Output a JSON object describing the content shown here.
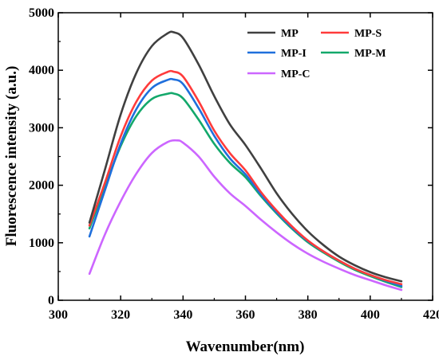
{
  "chart_data": {
    "type": "line",
    "xlabel": "Wavenumber(nm)",
    "ylabel": "Fluorescence intensity (a.u.)",
    "xlim": [
      300,
      420
    ],
    "ylim": [
      0,
      5000
    ],
    "x_ticks": [
      "300",
      "320",
      "340",
      "360",
      "380",
      "400",
      "420"
    ],
    "y_ticks": [
      "0",
      "1000",
      "2000",
      "3000",
      "4000",
      "5000"
    ],
    "grid": false,
    "legend_position": "top-right",
    "series": [
      {
        "name": "MP",
        "color": "#404040",
        "points": [
          [
            310,
            1350
          ],
          [
            315,
            2280
          ],
          [
            320,
            3230
          ],
          [
            325,
            3950
          ],
          [
            330,
            4420
          ],
          [
            335,
            4640
          ],
          [
            337,
            4660
          ],
          [
            340,
            4560
          ],
          [
            345,
            4100
          ],
          [
            350,
            3550
          ],
          [
            355,
            3060
          ],
          [
            360,
            2700
          ],
          [
            365,
            2290
          ],
          [
            370,
            1860
          ],
          [
            375,
            1500
          ],
          [
            380,
            1200
          ],
          [
            385,
            960
          ],
          [
            390,
            760
          ],
          [
            395,
            610
          ],
          [
            400,
            490
          ],
          [
            405,
            400
          ],
          [
            410,
            330
          ]
        ]
      },
      {
        "name": "MP-S",
        "color": "#ff3b3b",
        "points": [
          [
            310,
            1300
          ],
          [
            315,
            2050
          ],
          [
            320,
            2850
          ],
          [
            325,
            3450
          ],
          [
            330,
            3820
          ],
          [
            335,
            3970
          ],
          [
            337,
            3975
          ],
          [
            340,
            3890
          ],
          [
            345,
            3460
          ],
          [
            350,
            2950
          ],
          [
            355,
            2560
          ],
          [
            360,
            2260
          ],
          [
            365,
            1880
          ],
          [
            370,
            1560
          ],
          [
            375,
            1280
          ],
          [
            380,
            1040
          ],
          [
            385,
            850
          ],
          [
            390,
            690
          ],
          [
            395,
            550
          ],
          [
            400,
            440
          ],
          [
            405,
            350
          ],
          [
            410,
            280
          ]
        ]
      },
      {
        "name": "MP-I",
        "color": "#1f6fdc",
        "points": [
          [
            310,
            1110
          ],
          [
            315,
            1920
          ],
          [
            320,
            2720
          ],
          [
            325,
            3320
          ],
          [
            330,
            3690
          ],
          [
            335,
            3830
          ],
          [
            337,
            3840
          ],
          [
            340,
            3760
          ],
          [
            345,
            3340
          ],
          [
            350,
            2860
          ],
          [
            355,
            2470
          ],
          [
            360,
            2190
          ],
          [
            365,
            1840
          ],
          [
            370,
            1530
          ],
          [
            375,
            1260
          ],
          [
            380,
            1030
          ],
          [
            385,
            850
          ],
          [
            390,
            690
          ],
          [
            395,
            550
          ],
          [
            400,
            440
          ],
          [
            405,
            340
          ],
          [
            410,
            250
          ]
        ]
      },
      {
        "name": "MP-M",
        "color": "#13a86b",
        "points": [
          [
            310,
            1250
          ],
          [
            315,
            1980
          ],
          [
            320,
            2680
          ],
          [
            325,
            3200
          ],
          [
            330,
            3500
          ],
          [
            335,
            3590
          ],
          [
            337,
            3595
          ],
          [
            340,
            3510
          ],
          [
            345,
            3140
          ],
          [
            350,
            2720
          ],
          [
            355,
            2390
          ],
          [
            360,
            2140
          ],
          [
            365,
            1810
          ],
          [
            370,
            1510
          ],
          [
            375,
            1240
          ],
          [
            380,
            1010
          ],
          [
            385,
            830
          ],
          [
            390,
            670
          ],
          [
            395,
            530
          ],
          [
            400,
            420
          ],
          [
            405,
            320
          ],
          [
            410,
            230
          ]
        ]
      },
      {
        "name": "MP-C",
        "color": "#cc66ff",
        "points": [
          [
            310,
            460
          ],
          [
            315,
            1150
          ],
          [
            320,
            1720
          ],
          [
            325,
            2200
          ],
          [
            330,
            2560
          ],
          [
            335,
            2750
          ],
          [
            338,
            2780
          ],
          [
            340,
            2740
          ],
          [
            345,
            2500
          ],
          [
            350,
            2150
          ],
          [
            355,
            1860
          ],
          [
            360,
            1640
          ],
          [
            365,
            1400
          ],
          [
            370,
            1180
          ],
          [
            375,
            980
          ],
          [
            380,
            810
          ],
          [
            385,
            670
          ],
          [
            390,
            550
          ],
          [
            395,
            440
          ],
          [
            400,
            350
          ],
          [
            405,
            260
          ],
          [
            410,
            180
          ]
        ]
      }
    ]
  }
}
